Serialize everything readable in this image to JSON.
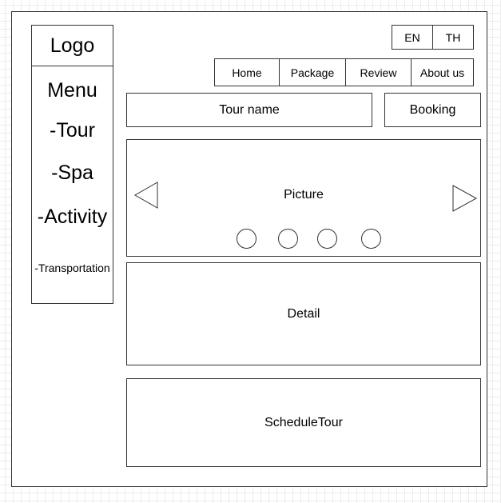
{
  "sidebar": {
    "logo": "Logo",
    "menu": {
      "title": "Menu",
      "items": [
        {
          "label": "-Tour"
        },
        {
          "label": "-Spa"
        },
        {
          "label": "-Activity"
        },
        {
          "label": "-Transportation"
        }
      ]
    }
  },
  "language": {
    "options": [
      "EN",
      "TH"
    ]
  },
  "nav": {
    "items": [
      "Home",
      "Package",
      "Review",
      "About us"
    ]
  },
  "main": {
    "tour_name": "Tour name",
    "booking": "Booking",
    "carousel": {
      "label": "Picture",
      "prev_icon": "triangle-left-icon",
      "next_icon": "triangle-right-icon",
      "indicator_count": 4
    },
    "detail": "Detail",
    "schedule": "ScheduleTour"
  }
}
